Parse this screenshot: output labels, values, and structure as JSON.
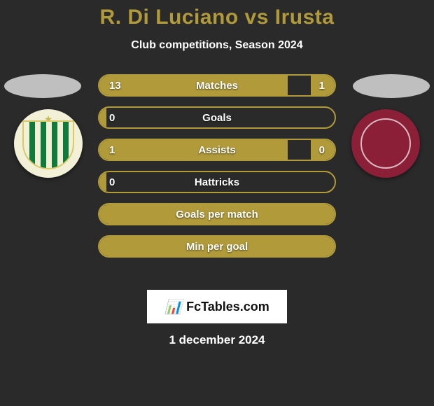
{
  "header": {
    "title": "R. Di Luciano vs Irusta",
    "subtitle": "Club competitions, Season 2024"
  },
  "teams": {
    "left": {
      "crest_colors": {
        "bg": "#f3f0d8",
        "stripe": "#0f7a3a",
        "border": "#d9c96a",
        "star": "#c9b94f"
      },
      "disc_color": "#bfbfbf",
      "code": "CAB"
    },
    "right": {
      "crest_colors": {
        "bg": "#8a1f37",
        "ring": "#d9b8c0"
      },
      "disc_color": "#bfbfbf",
      "code": "LAN"
    }
  },
  "chart": {
    "type": "horizontal-dual-bar",
    "bar_border_color": "#b09a3a",
    "bar_fill_color": "#b09a3a",
    "background_color": "#2a2a2a",
    "text_color": "#ffffff",
    "rows": [
      {
        "label": "Matches",
        "left_val": "13",
        "right_val": "1",
        "left_pct": 80,
        "right_pct": 10
      },
      {
        "label": "Goals",
        "left_val": "0",
        "right_val": "",
        "left_pct": 3,
        "right_pct": 0
      },
      {
        "label": "Assists",
        "left_val": "1",
        "right_val": "0",
        "left_pct": 80,
        "right_pct": 10
      },
      {
        "label": "Hattricks",
        "left_val": "0",
        "right_val": "",
        "left_pct": 3,
        "right_pct": 0
      },
      {
        "label": "Goals per match",
        "left_val": "",
        "right_val": "",
        "left_pct": 100,
        "right_pct": 0
      },
      {
        "label": "Min per goal",
        "left_val": "",
        "right_val": "",
        "left_pct": 100,
        "right_pct": 0
      }
    ]
  },
  "brand": {
    "icon": "⚡",
    "text": "FcTables.com"
  },
  "date": "1 december 2024"
}
